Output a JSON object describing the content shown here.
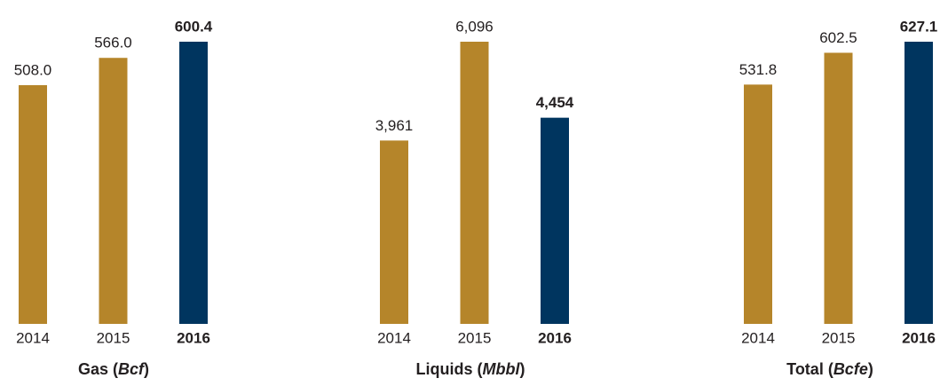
{
  "chart_data": [
    {
      "type": "bar",
      "title": "Gas (Bcf)",
      "categories": [
        "2014",
        "2015",
        "2016"
      ],
      "values": [
        508.0,
        566.0,
        600.4
      ],
      "value_labels": [
        "508.0",
        "566.0",
        "600.4"
      ],
      "colors": [
        "#b5852a",
        "#b5852a",
        "#00355f"
      ]
    },
    {
      "type": "bar",
      "title": "Liquids (Mbbl)",
      "categories": [
        "2014",
        "2015",
        "2016"
      ],
      "values": [
        3961,
        6096,
        4454
      ],
      "value_labels": [
        "3,961",
        "6,096",
        "4,454"
      ],
      "colors": [
        "#b5852a",
        "#b5852a",
        "#00355f"
      ]
    },
    {
      "type": "bar",
      "title": "Total (Bcfe)",
      "categories": [
        "2014",
        "2015",
        "2016"
      ],
      "values": [
        531.8,
        602.5,
        627.1
      ],
      "value_labels": [
        "531.8",
        "602.5",
        "627.1"
      ],
      "colors": [
        "#b5852a",
        "#b5852a",
        "#00355f"
      ]
    }
  ]
}
